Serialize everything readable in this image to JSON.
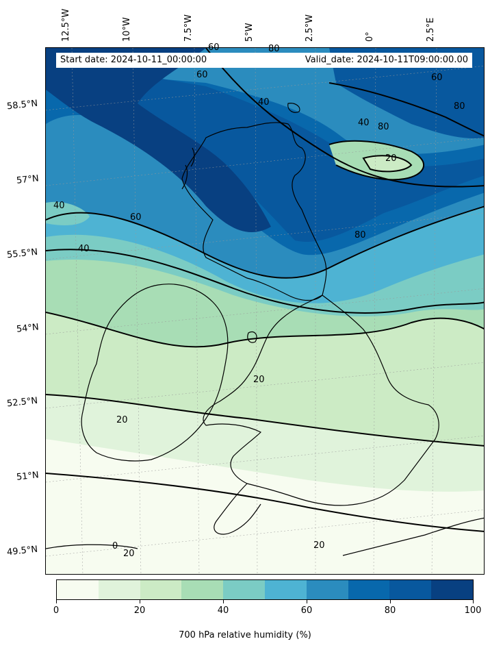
{
  "map": {
    "type": "meteorological-forecast-map",
    "variable": "700 hPa relative humidity",
    "units": "%",
    "start_date_label": "Start date: 2024-10-11_00:00:00",
    "valid_date_label": "Valid_date: 2024-10-11T09:00:00.00",
    "longitude_labels": [
      "12.5°W",
      "10°W",
      "7.5°W",
      "5°W",
      "2.5°W",
      "0°",
      "2.5°E"
    ],
    "latitude_labels": [
      "58.5°N",
      "57°N",
      "55.5°N",
      "54°N",
      "52.5°N",
      "51°N",
      "49.5°N"
    ],
    "contour_labels": [
      "60",
      "80",
      "60",
      "40",
      "60",
      "80",
      "40",
      "80",
      "20",
      "40",
      "60",
      "80",
      "40",
      "20",
      "20",
      "20",
      "0",
      "20"
    ],
    "regions_shown": [
      "Scotland",
      "Ireland",
      "Northern Ireland",
      "Wales",
      "England",
      "North Sea",
      "English Channel"
    ]
  },
  "colorbar": {
    "title": "700 hPa relative humidity (%)",
    "tick_labels": [
      "0",
      "20",
      "40",
      "60",
      "80",
      "100"
    ],
    "colors": [
      "#f7fcf0",
      "#e0f3db",
      "#ccebc5",
      "#a8ddb5",
      "#7bccc4",
      "#4eb3d3",
      "#2b8cbe",
      "#0868ac",
      "#08589e",
      "#084081"
    ]
  }
}
